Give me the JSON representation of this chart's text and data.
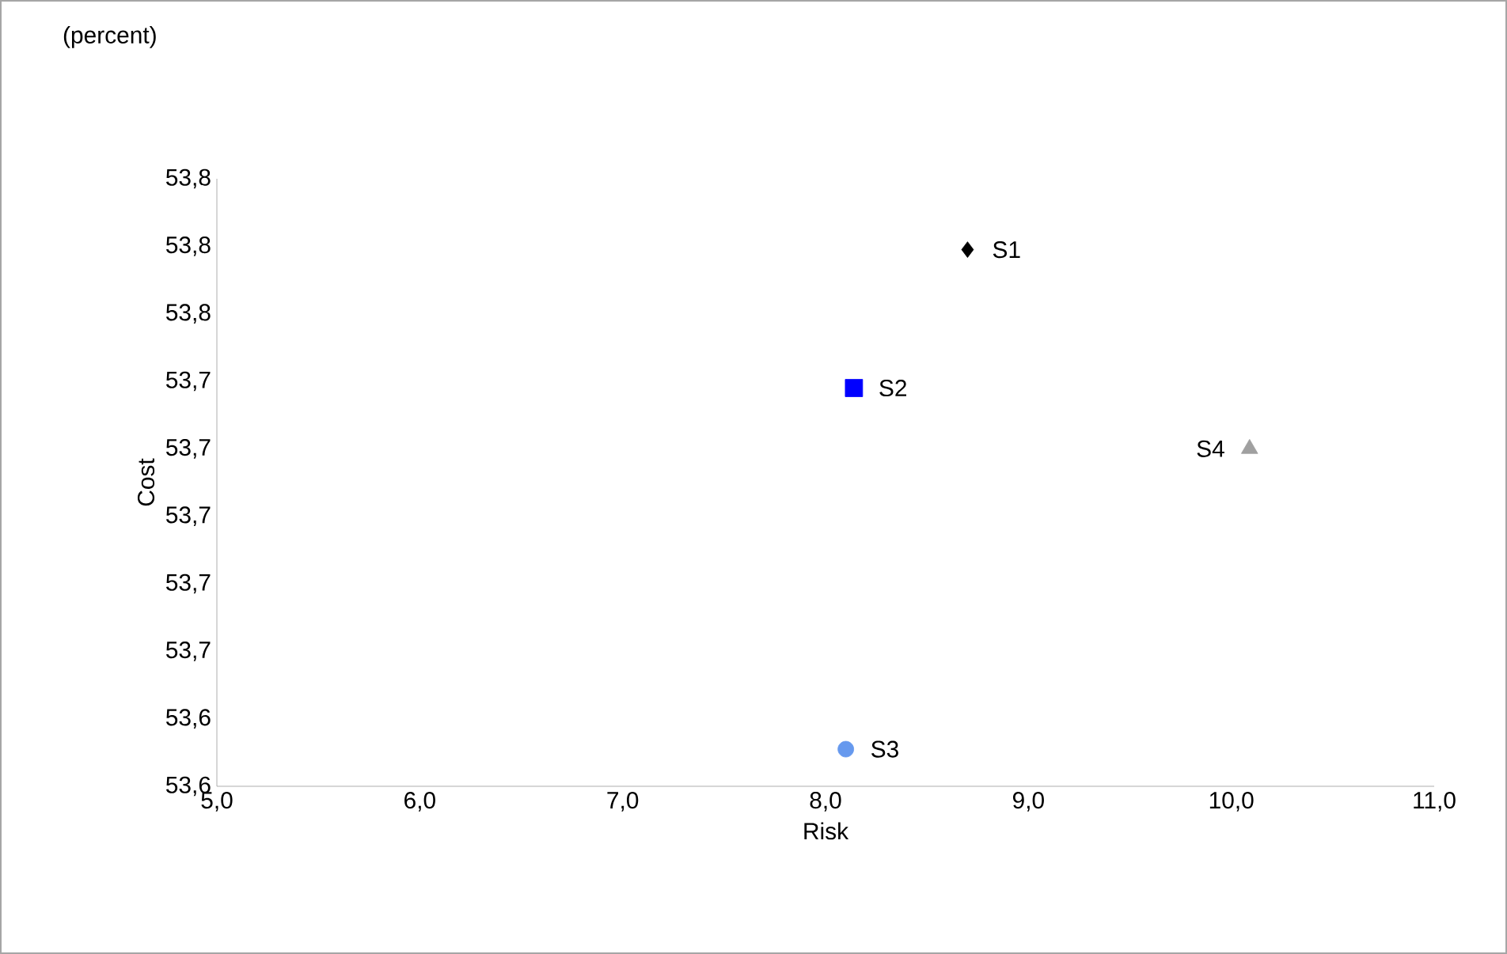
{
  "chart_data": {
    "type": "scatter",
    "xlabel": "Risk",
    "ylabel": "Cost",
    "annotations": [
      "(percent)"
    ],
    "series": [
      {
        "name": "S1",
        "color": "#000000",
        "marker": "diamond",
        "x": [
          8.7
        ],
        "values": [
          53.779
        ]
      },
      {
        "name": "S2",
        "color": "#0000ff",
        "marker": "square",
        "x": [
          8.14
        ],
        "values": [
          53.738
        ]
      },
      {
        "name": "S3",
        "color": "#6699ee",
        "marker": "circle",
        "x": [
          8.1
        ],
        "values": [
          53.631
        ]
      },
      {
        "name": "S4",
        "color": "#a0a0a0",
        "marker": "triangle",
        "x": [
          10.09
        ],
        "values": [
          53.72
        ]
      }
    ],
    "xlim": [
      5,
      11
    ],
    "xticks": [
      {
        "value": 5,
        "label": "5,0"
      },
      {
        "value": 6,
        "label": "6,0"
      },
      {
        "value": 7,
        "label": "7,0"
      },
      {
        "value": 8,
        "label": "8,0"
      },
      {
        "value": 9,
        "label": "9,0"
      },
      {
        "value": 10,
        "label": "10,0"
      },
      {
        "value": 11,
        "label": "11,0"
      }
    ],
    "ylim": [
      53.62,
      53.8
    ],
    "yticks": [
      {
        "value": 53.62,
        "label": "53,6"
      },
      {
        "value": 53.64,
        "label": "53,6"
      },
      {
        "value": 53.66,
        "label": "53,7"
      },
      {
        "value": 53.68,
        "label": "53,7"
      },
      {
        "value": 53.7,
        "label": "53,7"
      },
      {
        "value": 53.72,
        "label": "53,7"
      },
      {
        "value": 53.74,
        "label": "53,7"
      },
      {
        "value": 53.76,
        "label": "53,8"
      },
      {
        "value": 53.78,
        "label": "53,8"
      },
      {
        "value": 53.8,
        "label": "53,8"
      }
    ],
    "grid": false
  }
}
